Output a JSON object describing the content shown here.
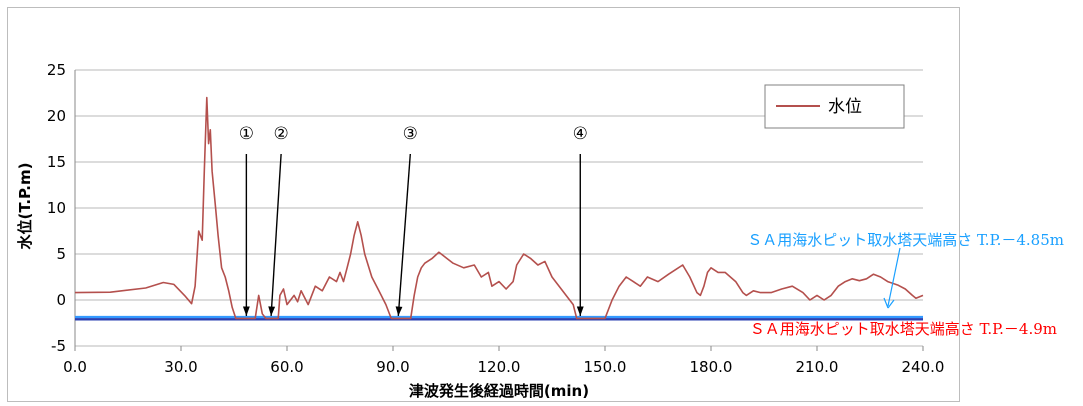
{
  "chart_data": {
    "type": "line",
    "xlabel": "津波発生後経過時間(min)",
    "ylabel": "水位(T.P.m)",
    "xlim": [
      0,
      240
    ],
    "ylim": [
      -5,
      25
    ],
    "x_ticks": [
      "0.0",
      "30.0",
      "60.0",
      "90.0",
      "120.0",
      "150.0",
      "180.0",
      "210.0",
      "240.0"
    ],
    "y_ticks": [
      "-5",
      "0",
      "5",
      "10",
      "15",
      "20",
      "25"
    ],
    "grid": "horizontal",
    "legend": "top-right",
    "series": [
      {
        "name": "水位",
        "color": "#b4504d",
        "points": [
          [
            0,
            0.8
          ],
          [
            10,
            0.85
          ],
          [
            20,
            1.3
          ],
          [
            25,
            1.9
          ],
          [
            28,
            1.7
          ],
          [
            31,
            0.5
          ],
          [
            33,
            -0.4
          ],
          [
            34,
            1.5
          ],
          [
            35,
            7.5
          ],
          [
            36,
            6.5
          ],
          [
            36.6,
            14
          ],
          [
            37.3,
            22
          ],
          [
            37.8,
            17
          ],
          [
            38.3,
            18.5
          ],
          [
            38.8,
            14
          ],
          [
            39.8,
            10
          ],
          [
            40.5,
            7
          ],
          [
            41.5,
            3.5
          ],
          [
            42.5,
            2.5
          ],
          [
            43.5,
            1.0
          ],
          [
            44.5,
            -0.8
          ],
          [
            45.5,
            -2.0
          ],
          [
            51,
            -2.0
          ],
          [
            52,
            0.5
          ],
          [
            53,
            -1.5
          ],
          [
            54,
            -2.0
          ],
          [
            57.5,
            -2.0
          ],
          [
            58,
            0.5
          ],
          [
            59,
            1.2
          ],
          [
            60,
            -0.5
          ],
          [
            62,
            0.5
          ],
          [
            63,
            -0.2
          ],
          [
            64,
            1.0
          ],
          [
            66,
            -0.5
          ],
          [
            68,
            1.5
          ],
          [
            70,
            1.0
          ],
          [
            72,
            2.5
          ],
          [
            74,
            2.0
          ],
          [
            75,
            3.0
          ],
          [
            76,
            2.0
          ],
          [
            77,
            3.5
          ],
          [
            78,
            5.0
          ],
          [
            79,
            7.0
          ],
          [
            80,
            8.5
          ],
          [
            81,
            7.0
          ],
          [
            82,
            5.0
          ],
          [
            84,
            2.5
          ],
          [
            86,
            1.0
          ],
          [
            88,
            -0.5
          ],
          [
            89.5,
            -2.0
          ],
          [
            95,
            -2.0
          ],
          [
            96,
            0.5
          ],
          [
            97,
            2.5
          ],
          [
            98,
            3.5
          ],
          [
            99,
            4.0
          ],
          [
            101,
            4.5
          ],
          [
            103,
            5.2
          ],
          [
            105,
            4.6
          ],
          [
            107,
            4.0
          ],
          [
            110,
            3.5
          ],
          [
            113,
            3.8
          ],
          [
            115,
            2.5
          ],
          [
            117,
            3.0
          ],
          [
            118,
            1.5
          ],
          [
            120,
            2.0
          ],
          [
            122,
            1.2
          ],
          [
            124,
            2.0
          ],
          [
            125,
            3.8
          ],
          [
            127,
            5.0
          ],
          [
            129,
            4.5
          ],
          [
            131,
            3.8
          ],
          [
            133,
            4.2
          ],
          [
            135,
            2.5
          ],
          [
            137,
            1.5
          ],
          [
            139,
            0.5
          ],
          [
            141,
            -0.5
          ],
          [
            142,
            -2.0
          ],
          [
            150,
            -2.0
          ],
          [
            152,
            0.0
          ],
          [
            154,
            1.5
          ],
          [
            156,
            2.5
          ],
          [
            158,
            2.0
          ],
          [
            160,
            1.5
          ],
          [
            162,
            2.5
          ],
          [
            165,
            2.0
          ],
          [
            168,
            2.8
          ],
          [
            170,
            3.3
          ],
          [
            172,
            3.8
          ],
          [
            174,
            2.5
          ],
          [
            176,
            0.8
          ],
          [
            177,
            0.5
          ],
          [
            178,
            1.5
          ],
          [
            179,
            3.0
          ],
          [
            180,
            3.5
          ],
          [
            182,
            3.0
          ],
          [
            184,
            3.0
          ],
          [
            187,
            2.0
          ],
          [
            189,
            0.8
          ],
          [
            190,
            0.5
          ],
          [
            192,
            1.0
          ],
          [
            194,
            0.8
          ],
          [
            197,
            0.8
          ],
          [
            200,
            1.2
          ],
          [
            203,
            1.5
          ],
          [
            206,
            0.8
          ],
          [
            208,
            0.0
          ],
          [
            210,
            0.5
          ],
          [
            212,
            0.0
          ],
          [
            214,
            0.5
          ],
          [
            216,
            1.5
          ],
          [
            218,
            2.0
          ],
          [
            220,
            2.3
          ],
          [
            222,
            2.1
          ],
          [
            224,
            2.3
          ],
          [
            226,
            2.8
          ],
          [
            228,
            2.5
          ],
          [
            230,
            2.0
          ],
          [
            233,
            1.6
          ],
          [
            235,
            1.2
          ],
          [
            237,
            0.5
          ],
          [
            238,
            0.2
          ],
          [
            240,
            0.5
          ]
        ]
      }
    ],
    "reference_lines": [
      {
        "y": -1.85,
        "color": "#3399ff",
        "label": "ＳＡ用海水ピット取水塔天端高さ T.P.－4.85m"
      },
      {
        "y": -2.1,
        "color": "#2a3fb0",
        "label": "ＳＡ用海水ピット取水塔天端高さ T.P.－4.9m"
      }
    ],
    "markers": [
      {
        "label": "①",
        "x": 48.5
      },
      {
        "label": "②",
        "x": 55.5
      },
      {
        "label": "③",
        "x": 91.5
      },
      {
        "label": "④",
        "x": 143
      }
    ]
  },
  "colors": {
    "line": "#b4504d",
    "cyan_annotation": "#1aa0ff",
    "red_annotation": "#ff0000"
  }
}
